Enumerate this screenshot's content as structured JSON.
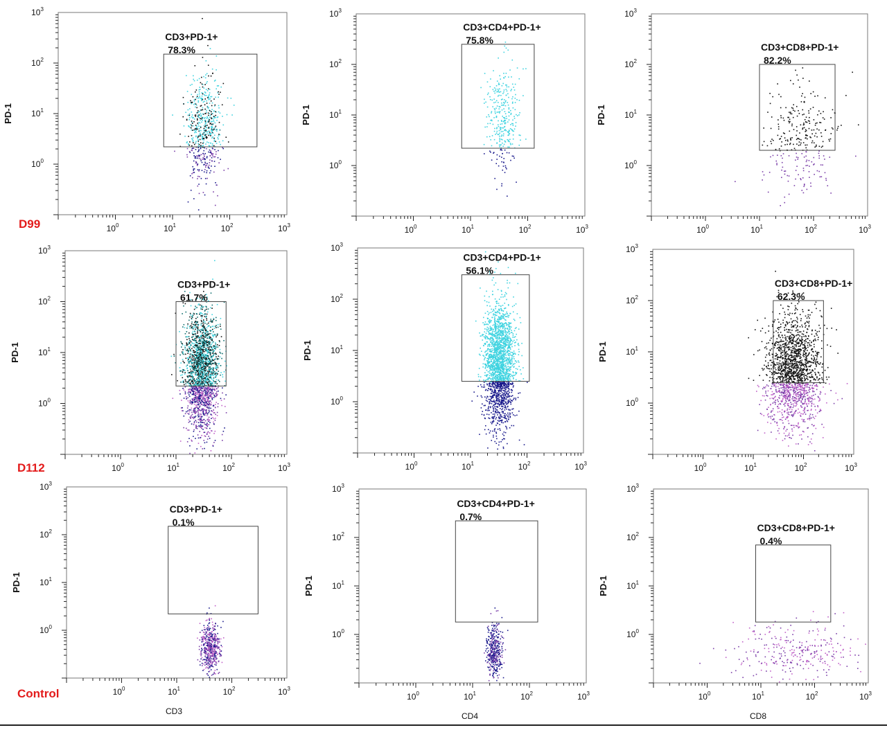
{
  "row_labels": [
    "D99",
    "D112",
    "Control"
  ],
  "x_axis_labels": [
    "",
    "",
    "",
    "",
    "",
    "",
    "CD3",
    "CD4",
    "CD8"
  ],
  "colors": {
    "cyan": "#3fd3e0",
    "black": "#111111",
    "navy": "#1a1a8c",
    "purple": "#7a3ea8",
    "magenta": "#c060c8",
    "teal": "#0f6f6f",
    "label_red": "#e31b1b"
  },
  "chart_data": [
    {
      "type": "scatter",
      "row": "D99",
      "ylabel": "PD-1",
      "xlabel": "",
      "gate_label": "CD3+PD-1+",
      "gate_percent": "78.3%",
      "xlim": [
        0.1,
        1000
      ],
      "ylim": [
        0.1,
        1000
      ],
      "x_ticks": [
        "10⁰",
        "10¹",
        "10²",
        "10³"
      ],
      "y_ticks": [
        "10⁰",
        "10¹",
        "10²",
        "10³"
      ],
      "gate": {
        "x": [
          7,
          300
        ],
        "y": [
          2.2,
          150
        ]
      }
    },
    {
      "type": "scatter",
      "row": "D99",
      "ylabel": "PD-1",
      "xlabel": "",
      "gate_label": "CD3+CD4+PD-1+",
      "gate_percent": "75.8%",
      "xlim": [
        0.1,
        1000
      ],
      "ylim": [
        0.1,
        1000
      ],
      "x_ticks": [
        "10⁰",
        "10¹",
        "10²",
        "10³"
      ],
      "y_ticks": [
        "10⁰",
        "10¹",
        "10²",
        "10³"
      ],
      "gate": {
        "x": [
          7,
          130
        ],
        "y": [
          2.2,
          250
        ]
      }
    },
    {
      "type": "scatter",
      "row": "D99",
      "ylabel": "PD-1",
      "xlabel": "",
      "gate_label": "CD3+CD8+PD-1+",
      "gate_percent": "82.2%",
      "xlim": [
        0.1,
        1000
      ],
      "ylim": [
        0.1,
        1000
      ],
      "x_ticks": [
        "10⁰",
        "10¹",
        "10²",
        "10³"
      ],
      "y_ticks": [
        "10⁰",
        "10¹",
        "10²",
        "10³"
      ],
      "gate": {
        "x": [
          10,
          250
        ],
        "y": [
          2,
          100
        ]
      }
    },
    {
      "type": "scatter",
      "row": "D112",
      "ylabel": "PD-1",
      "xlabel": "",
      "gate_label": "CD3+PD-1+",
      "gate_percent": "61.7%",
      "xlim": [
        0.1,
        1000
      ],
      "ylim": [
        0.1,
        1000
      ],
      "x_ticks": [
        "10⁰",
        "10¹",
        "10²",
        "10³"
      ],
      "y_ticks": [
        "10⁰",
        "10¹",
        "10²",
        "10³"
      ],
      "gate": {
        "x": [
          10,
          80
        ],
        "y": [
          2.2,
          100
        ]
      }
    },
    {
      "type": "scatter",
      "row": "D112",
      "ylabel": "PD-1",
      "xlabel": "",
      "gate_label": "CD3+CD4+PD-1+",
      "gate_percent": "56.1%",
      "xlim": [
        0.1,
        1000
      ],
      "ylim": [
        0.1,
        1000
      ],
      "x_ticks": [
        "10⁰",
        "10¹",
        "10²",
        "10³"
      ],
      "y_ticks": [
        "10⁰",
        "10¹",
        "10²",
        "10³"
      ],
      "gate": {
        "x": [
          7,
          110
        ],
        "y": [
          2.5,
          300
        ]
      }
    },
    {
      "type": "scatter",
      "row": "D112",
      "ylabel": "PD-1",
      "xlabel": "",
      "gate_label": "CD3+CD8+PD-1+",
      "gate_percent": "62.3%",
      "xlim": [
        0.1,
        1000
      ],
      "ylim": [
        0.1,
        1000
      ],
      "x_ticks": [
        "10⁰",
        "10¹",
        "10²",
        "10³"
      ],
      "y_ticks": [
        "10⁰",
        "10¹",
        "10²",
        "10³"
      ],
      "gate": {
        "x": [
          25,
          250
        ],
        "y": [
          2.5,
          100
        ]
      }
    },
    {
      "type": "scatter",
      "row": "Control",
      "ylabel": "PD-1",
      "xlabel": "CD3",
      "gate_label": "CD3+PD-1+",
      "gate_percent": "0.1%",
      "xlim": [
        0.1,
        1000
      ],
      "ylim": [
        0.1,
        1000
      ],
      "x_ticks": [
        "10⁰",
        "10¹",
        "10²",
        "10³"
      ],
      "y_ticks": [
        "10⁰",
        "10¹",
        "10²",
        "10³"
      ],
      "gate": {
        "x": [
          7,
          300
        ],
        "y": [
          2.2,
          150
        ]
      }
    },
    {
      "type": "scatter",
      "row": "Control",
      "ylabel": "PD-1",
      "xlabel": "CD4",
      "gate_label": "CD3+CD4+PD-1+",
      "gate_percent": "0.7%",
      "xlim": [
        0.1,
        1000
      ],
      "ylim": [
        0.1,
        1000
      ],
      "x_ticks": [
        "10⁰",
        "10¹",
        "10²",
        "10³"
      ],
      "y_ticks": [
        "10⁰",
        "10¹",
        "10²",
        "10³"
      ],
      "gate": {
        "x": [
          5,
          140
        ],
        "y": [
          1.8,
          220
        ]
      }
    },
    {
      "type": "scatter",
      "row": "Control",
      "ylabel": "PD-1",
      "xlabel": "CD8",
      "gate_label": "CD3+CD8+PD-1+",
      "gate_percent": "0.4%",
      "xlim": [
        0.1,
        1000
      ],
      "ylim": [
        0.1,
        1000
      ],
      "x_ticks": [
        "10⁰",
        "10¹",
        "10²",
        "10³"
      ],
      "y_ticks": [
        "10⁰",
        "10¹",
        "10²",
        "10³"
      ],
      "gate": {
        "x": [
          8,
          200
        ],
        "y": [
          1.8,
          70
        ]
      }
    }
  ]
}
